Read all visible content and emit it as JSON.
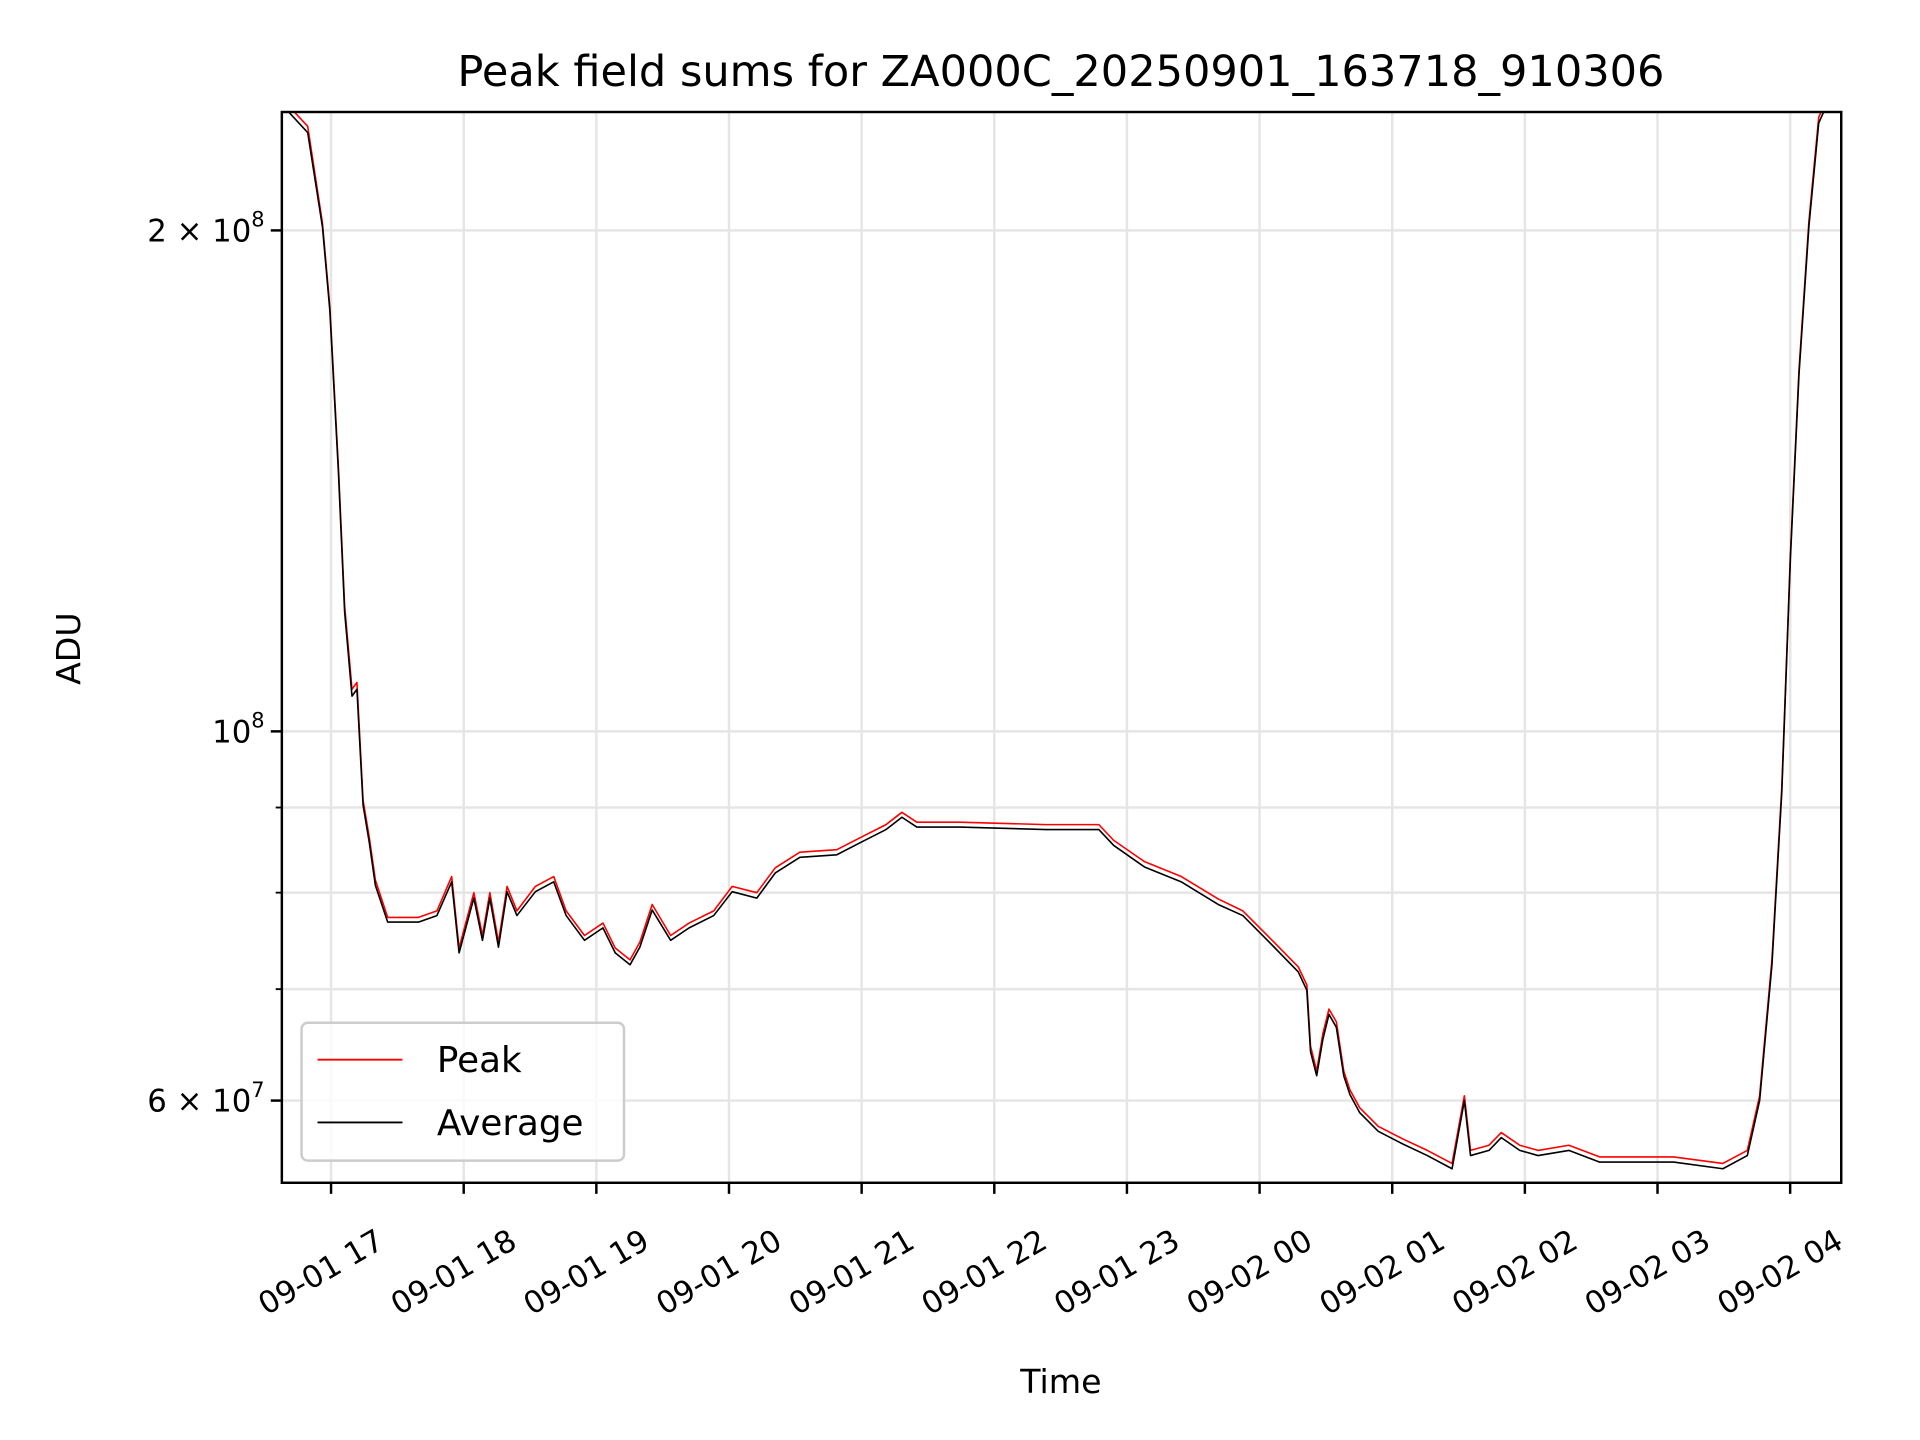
{
  "chart_data": {
    "type": "line",
    "title": "Peak field sums for ZA000C_20250901_163718_910306",
    "xlabel": "Time",
    "ylabel": "ADU",
    "x_unit": "hours since 09-01 00:00",
    "xlim": [
      16.629,
      28.385
    ],
    "ylim": [
      53550000.0,
      235600000.0
    ],
    "yscale": "log",
    "grid": true,
    "legend_placement": "lower-left",
    "x_ticks": [
      {
        "value": 17,
        "label": "09-01 17"
      },
      {
        "value": 18,
        "label": "09-01 18"
      },
      {
        "value": 19,
        "label": "09-01 19"
      },
      {
        "value": 20,
        "label": "09-01 20"
      },
      {
        "value": 21,
        "label": "09-01 21"
      },
      {
        "value": 22,
        "label": "09-01 22"
      },
      {
        "value": 23,
        "label": "09-01 23"
      },
      {
        "value": 24,
        "label": "09-02 00"
      },
      {
        "value": 25,
        "label": "09-02 01"
      },
      {
        "value": 26,
        "label": "09-02 02"
      },
      {
        "value": 27,
        "label": "09-02 03"
      },
      {
        "value": 28,
        "label": "09-02 04"
      }
    ],
    "y_major_ticks": [
      {
        "value": 200000000.0,
        "base": "2 × 10",
        "exp": "8"
      },
      {
        "value": 100000000.0,
        "base": "10",
        "exp": "8"
      },
      {
        "value": 60000000.0,
        "base": "6 × 10",
        "exp": "7"
      }
    ],
    "y_minor_ticks": [
      70000000.0,
      80000000.0,
      90000000.0
    ],
    "x": [
      16.629,
      16.824,
      16.935,
      16.991,
      17.056,
      17.102,
      17.158,
      17.195,
      17.241,
      17.288,
      17.334,
      17.427,
      17.659,
      17.798,
      17.909,
      17.965,
      18.076,
      18.141,
      18.197,
      18.262,
      18.327,
      18.401,
      18.54,
      18.679,
      18.772,
      18.911,
      19.05,
      19.143,
      19.254,
      19.328,
      19.421,
      19.56,
      19.699,
      19.885,
      20.024,
      20.21,
      20.349,
      20.534,
      20.813,
      20.998,
      21.184,
      21.304,
      21.416,
      21.74,
      22.39,
      22.788,
      22.9,
      23.132,
      23.41,
      23.688,
      23.874,
      24.059,
      24.291,
      24.356,
      24.384,
      24.43,
      24.477,
      24.523,
      24.579,
      24.635,
      24.681,
      24.755,
      24.894,
      25.08,
      25.265,
      25.451,
      25.544,
      25.59,
      25.729,
      25.822,
      25.961,
      26.1,
      26.332,
      26.564,
      26.842,
      27.121,
      27.492,
      27.677,
      27.77,
      27.863,
      27.937,
      28.002,
      28.067,
      28.141,
      28.215,
      28.327
    ],
    "series": [
      {
        "name": "Peak",
        "color": "#ff0000",
        "values": [
          240000000.0,
          231000000.0,
          202000000.0,
          180000000.0,
          144000000.0,
          119000000.0,
          106000000.0,
          107000000.0,
          90900000.0,
          86400000.0,
          81400000.0,
          77300000.0,
          77300000.0,
          78000000.0,
          81800000.0,
          74100000.0,
          80000000.0,
          75400000.0,
          80000000.0,
          74700000.0,
          80700000.0,
          78000000.0,
          80700000.0,
          81800000.0,
          78000000.0,
          75400000.0,
          76700000.0,
          74100000.0,
          72900000.0,
          74700000.0,
          78700000.0,
          75400000.0,
          76700000.0,
          78000000.0,
          80700000.0,
          80000000.0,
          82800000.0,
          84600000.0,
          84900000.0,
          86400000.0,
          87900000.0,
          89400000.0,
          88200000.0,
          88200000.0,
          87900000.0,
          87900000.0,
          86000000.0,
          83500000.0,
          81800000.0,
          79300000.0,
          78000000.0,
          75400000.0,
          72200000.0,
          70400000.0,
          64700000.0,
          62500000.0,
          65800000.0,
          68100000.0,
          66900000.0,
          62500000.0,
          60900000.0,
          59400000.0,
          57900000.0,
          56900000.0,
          56000000.0,
          55000000.0,
          60400000.0,
          56000000.0,
          56400000.0,
          57400000.0,
          56400000.0,
          56000000.0,
          56400000.0,
          55500000.0,
          55500000.0,
          55500000.0,
          55000000.0,
          56000000.0,
          60400000.0,
          72900000.0,
          92500000.0,
          127800000.0,
          165000000.0,
          202400000.0,
          233900000.0,
          245000000.0
        ]
      },
      {
        "name": "Average",
        "color": "#000000",
        "values": [
          238000000.0,
          229000000.0,
          201000000.0,
          179000000.0,
          143000000.0,
          118000000.0,
          105000000.0,
          106000000.0,
          90300000.0,
          85800000.0,
          80800000.0,
          76800000.0,
          76800000.0,
          77500000.0,
          81200000.0,
          73600000.0,
          79400000.0,
          74900000.0,
          79400000.0,
          74200000.0,
          80100000.0,
          77500000.0,
          80100000.0,
          81200000.0,
          77500000.0,
          74900000.0,
          76200000.0,
          73600000.0,
          72400000.0,
          74200000.0,
          78100000.0,
          74900000.0,
          76200000.0,
          77500000.0,
          80100000.0,
          79400000.0,
          82200000.0,
          84000000.0,
          84300000.0,
          85800000.0,
          87300000.0,
          88800000.0,
          87600000.0,
          87600000.0,
          87300000.0,
          87300000.0,
          85400000.0,
          82900000.0,
          81200000.0,
          78700000.0,
          77500000.0,
          74900000.0,
          71700000.0,
          69900000.0,
          64200000.0,
          62100000.0,
          65300000.0,
          67600000.0,
          66400000.0,
          62100000.0,
          60500000.0,
          59000000.0,
          57500000.0,
          56500000.0,
          55600000.0,
          54600000.0,
          60000000.0,
          55600000.0,
          56000000.0,
          57000000.0,
          56000000.0,
          55600000.0,
          56000000.0,
          55100000.0,
          55100000.0,
          55100000.0,
          54600000.0,
          55600000.0,
          60000000.0,
          72400000.0,
          91900000.0,
          127000000.0,
          164000000.0,
          201000000.0,
          232000000.0,
          243000000.0
        ]
      }
    ]
  }
}
